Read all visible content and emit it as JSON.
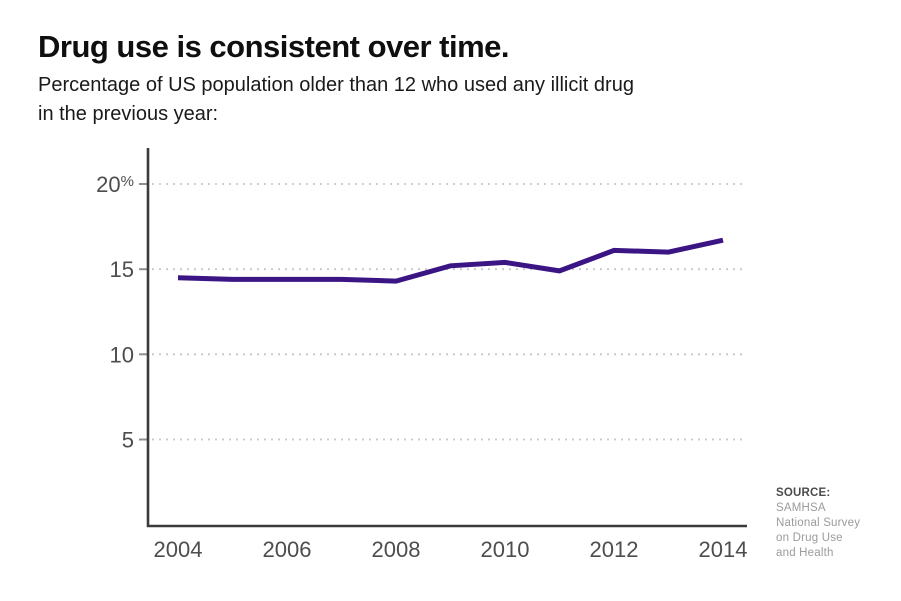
{
  "header": {
    "title": "Drug use is consistent over time.",
    "subtitle_lines": [
      "Percentage of US population older than 12 who used any illicit drug",
      "in the previous year:"
    ]
  },
  "source": {
    "label": "SOURCE:",
    "lines": [
      "SAMHSA",
      "National Survey",
      "on Drug Use",
      "and Health"
    ]
  },
  "chart_data": {
    "type": "line",
    "title": "Drug use is consistent over time.",
    "subtitle": "Percentage of US population older than 12 who used any illicit drug in the previous year:",
    "x": [
      2004,
      2005,
      2006,
      2007,
      2008,
      2009,
      2010,
      2011,
      2012,
      2013,
      2014
    ],
    "series": [
      {
        "name": "Percent of US population 12+ using any illicit drug in past year",
        "values": [
          14.5,
          14.4,
          14.4,
          14.4,
          14.3,
          15.2,
          15.4,
          14.9,
          16.1,
          16.0,
          16.7
        ]
      }
    ],
    "x_tick_labels": [
      "2004",
      "2006",
      "2008",
      "2010",
      "2012",
      "2014"
    ],
    "y_ticks": [
      20,
      15,
      10,
      5
    ],
    "y_tick_labels": [
      "20%",
      "15",
      "10",
      "5"
    ],
    "ylim": [
      0,
      22
    ],
    "xlabel": "",
    "ylabel": "",
    "grid": "horizontal-dotted",
    "legend": "none",
    "line_color": "#3c1585",
    "source": "SOURCE: SAMHSA National Survey on Drug Use and Health"
  }
}
